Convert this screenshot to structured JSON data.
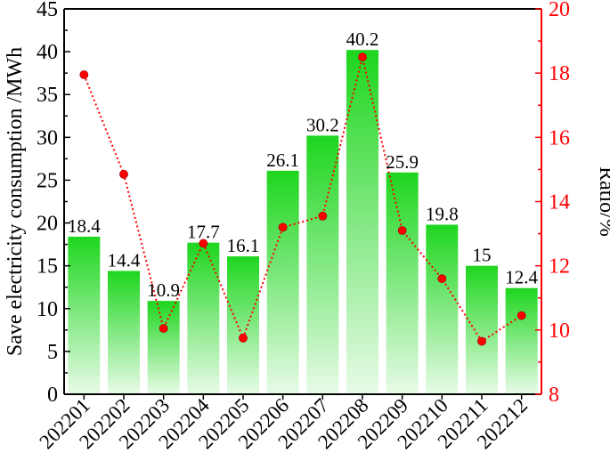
{
  "chart_data": {
    "type": "bar",
    "categories": [
      "202201",
      "202202",
      "202203",
      "202204",
      "202205",
      "202206",
      "202207",
      "202208",
      "202209",
      "202210",
      "202211",
      "202212"
    ],
    "series": [
      {
        "type": "bar",
        "axis": "left",
        "values": [
          18.4,
          14.4,
          10.9,
          17.7,
          16.1,
          26.1,
          30.2,
          40.2,
          25.9,
          19.8,
          15,
          12.4
        ],
        "value_labels": [
          "18.4",
          "14.4",
          "10.9",
          "17.7",
          "16.1",
          "26.1",
          "30.2",
          "40.2",
          "25.9",
          "19.8",
          "15",
          "12.4"
        ],
        "color_top": "#1ed61e",
        "color_bottom": "#e8fbe8"
      },
      {
        "type": "line",
        "axis": "right",
        "style": "dotted",
        "marker": "circle",
        "values": [
          17.95,
          14.85,
          10.05,
          12.7,
          9.75,
          13.2,
          13.55,
          18.5,
          13.1,
          11.6,
          9.65,
          10.45
        ],
        "color": "#ff0000"
      }
    ],
    "ylabel": "Save electricity consumption /MWh",
    "ylim": [
      0,
      45
    ],
    "yticks": [
      0,
      5,
      10,
      15,
      20,
      25,
      30,
      35,
      40,
      45
    ],
    "y2label": "Ratio/%",
    "y2lim": [
      8,
      20
    ],
    "y2ticks": [
      8,
      10,
      12,
      14,
      16,
      18,
      20
    ],
    "y2_color": "#ff0000",
    "grid": false,
    "xtick_rotation": -45
  }
}
